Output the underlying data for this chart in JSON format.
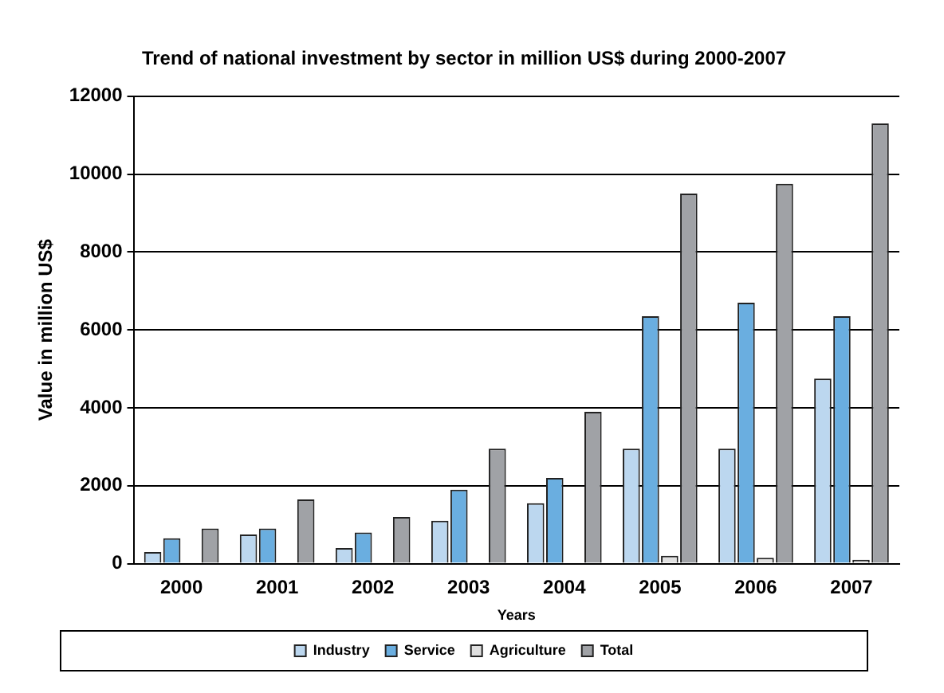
{
  "chart_data": {
    "type": "bar",
    "title": "Trend of national investment by sector in million US$ during 2000-2007",
    "xlabel": "Years",
    "ylabel": "Value in million US$",
    "categories": [
      "2000",
      "2001",
      "2002",
      "2003",
      "2004",
      "2005",
      "2006",
      "2007"
    ],
    "series": [
      {
        "name": "Industry",
        "color": "#bcd7ef",
        "values": [
          300,
          750,
          400,
          1100,
          1550,
          2950,
          2950,
          4750
        ]
      },
      {
        "name": "Service",
        "color": "#6aaee0",
        "values": [
          650,
          900,
          800,
          1900,
          2200,
          6350,
          6700,
          6350
        ]
      },
      {
        "name": "Agriculture",
        "color": "#e0e0e0",
        "values": [
          0,
          0,
          0,
          0,
          0,
          200,
          150,
          100
        ]
      },
      {
        "name": "Total",
        "color": "#a0a2a6",
        "values": [
          900,
          1650,
          1200,
          2950,
          3900,
          9500,
          9750,
          11300
        ]
      }
    ],
    "ylim": [
      0,
      12000
    ],
    "yticks": [
      0,
      2000,
      4000,
      6000,
      8000,
      10000,
      12000
    ],
    "grid": "y",
    "legend": "bottom"
  }
}
